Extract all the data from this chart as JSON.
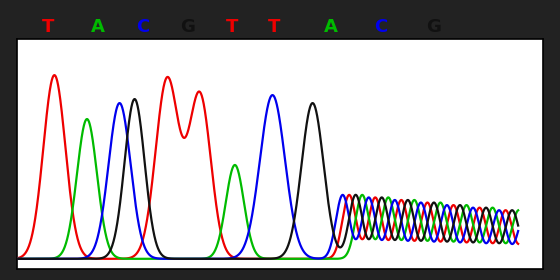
{
  "sequence": [
    "T",
    "A",
    "C",
    "G",
    "T",
    "T",
    "A",
    "C",
    "G"
  ],
  "base_colors": {
    "T": "#ee0000",
    "A": "#00bb00",
    "C": "#0000ee",
    "G": "#111111"
  },
  "bg_color": "#ffffff",
  "outer_bg": "#222222",
  "label_fontsize": 13,
  "label_fontweight": "bold",
  "seq_label_positions": [
    [
      "T",
      0.085
    ],
    [
      "A",
      0.175
    ],
    [
      "C",
      0.255
    ],
    [
      "G",
      0.335
    ],
    [
      "T",
      0.415
    ],
    [
      "T",
      0.49
    ],
    [
      "A",
      0.59
    ],
    [
      "C",
      0.68
    ],
    [
      "G",
      0.775
    ]
  ]
}
